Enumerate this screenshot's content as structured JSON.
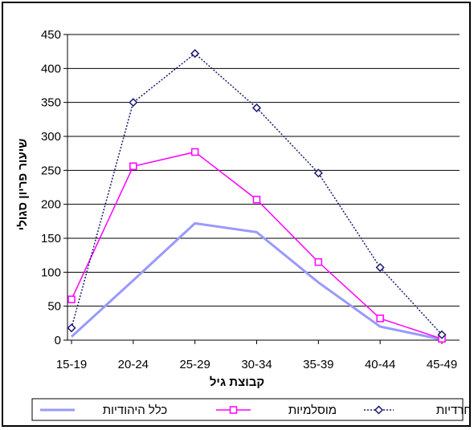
{
  "chart_data": {
    "type": "line",
    "title": "",
    "xlabel": "קבוצת גיל",
    "ylabel": "שיעור פריון סגולי",
    "categories": [
      "15-19",
      "20-24",
      "25-29",
      "30-34",
      "35-39",
      "40-44",
      "45-49"
    ],
    "ylim": [
      0,
      450
    ],
    "yticks": [
      0,
      50,
      100,
      150,
      200,
      250,
      300,
      350,
      400,
      450
    ],
    "grid": true,
    "legend_position": "bottom",
    "series": [
      {
        "name": "חרדיות",
        "values": [
          18,
          350,
          422,
          342,
          246,
          107,
          8
        ],
        "color": "#1a1a6e",
        "marker": "diamond",
        "line": "dotted"
      },
      {
        "name": "מוסלמיות",
        "values": [
          60,
          256,
          277,
          207,
          115,
          32,
          2
        ],
        "color": "#ff00ff",
        "marker": "square",
        "line": "solid"
      },
      {
        "name": "כלל היהודיות",
        "values": [
          5,
          88,
          172,
          159,
          85,
          20,
          1
        ],
        "color": "#9999ff",
        "marker": "none",
        "line": "solid-thick"
      }
    ]
  }
}
